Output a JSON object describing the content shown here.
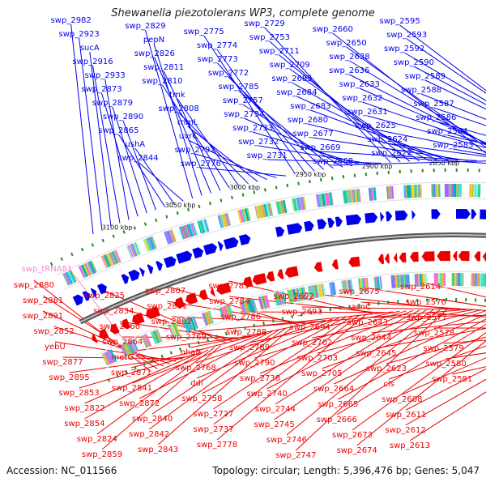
{
  "title": "Shewanella piezotolerans WP3, complete genome",
  "footer": {
    "accession": "Accession: NC_011566",
    "summary": "Topology: circular; Length: 5,396,476 bp; Genes: 5,047"
  },
  "colors": {
    "plus": "#0000ee",
    "minus": "#ee0000",
    "rna": "#ee88cc",
    "backbone": "#888888",
    "tick": "#1f8a1f"
  },
  "kbp_labels": [
    "3100 kbp",
    "3050 kbp",
    "3000 kbp",
    "2950 kbp",
    "2900 kbp",
    "2850 kbp",
    "2800 kbp",
    "2750 kbp",
    "2700 kbp"
  ],
  "plus_labels": [
    "swp_2982",
    "swp_2923",
    "sucA",
    "swp_2916",
    "swp_2933",
    "swp_2873",
    "swp_2879",
    "swp_2890",
    "swp_2865",
    "ushA",
    "swp_2844",
    "swp_2829",
    "pepN",
    "swp_2826",
    "swp_2811",
    "swp_2810",
    "tmk",
    "swp_2808",
    "rnmL",
    "uvrC",
    "swp_2792",
    "swp_2776",
    "swp_2775",
    "swp_2774",
    "swp_2773",
    "swp_2772",
    "swp_2785",
    "swp_2757",
    "swp_2734",
    "swp_2733",
    "swp_2732",
    "swp_2731",
    "swp_2729",
    "swp_2753",
    "swp_2711",
    "swp_2709",
    "swp_2685",
    "swp_2684",
    "swp_2683",
    "swp_2680",
    "swp_2677",
    "swp_2669",
    "swp_2668",
    "swp_2660",
    "swp_2650",
    "swp_2638",
    "swp_2636",
    "swp_2633",
    "swp_2632",
    "swp_2631",
    "swp_2625",
    "swp_2624",
    "swp_2622",
    "swp_2595",
    "swp_2593",
    "swp_2592",
    "swp_2590",
    "swp_2589",
    "swp_2588",
    "swp_2587",
    "swp_2586",
    "swp_2584",
    "swp_2583"
  ],
  "rna_labels": [
    "swp_tRNA81"
  ],
  "minus_labels": [
    "swp_2880",
    "swp_2861",
    "swp_2891",
    "swp_2852",
    "yebU",
    "swp_2877",
    "swp_2895",
    "swp_2853",
    "swp_2822",
    "swp_2854",
    "swp_2824",
    "swp_2859",
    "swp_2825",
    "swp_2834",
    "swp_2866",
    "swp_2864",
    "metG",
    "swp_2871",
    "swp_2841",
    "swp_2872",
    "swp_2840",
    "swp_2842",
    "swp_2843",
    "swp_2807",
    "swp_2801",
    "swp_2802",
    "swp_2769",
    "nhaB",
    "swp_2768",
    "ddl",
    "swp_2758",
    "swp_2727",
    "swp_2737",
    "swp_2778",
    "swp_2783",
    "swp_2784",
    "swp_2786",
    "swp_2788",
    "swp_2789",
    "swp_2790",
    "swp_2738",
    "swp_2740",
    "swp_2744",
    "swp_2745",
    "swp_2746",
    "swp_2747",
    "swp_2692",
    "swp_2693",
    "swp_2694",
    "swp_2702",
    "swp_2703",
    "swp_2705",
    "swp_2664",
    "swp_2665",
    "swp_2666",
    "swp_2673",
    "swp_2674",
    "swp_2675",
    "asnC",
    "swp_2643",
    "swp_2644",
    "swp_2645",
    "swp_2623",
    "cls",
    "swp_2608",
    "swp_2611",
    "swp_2612",
    "swp_2613",
    "swp_2614",
    "swp_2576",
    "swp_2577",
    "swp_2578",
    "swp_2579",
    "swp_2580",
    "swp_2581"
  ]
}
